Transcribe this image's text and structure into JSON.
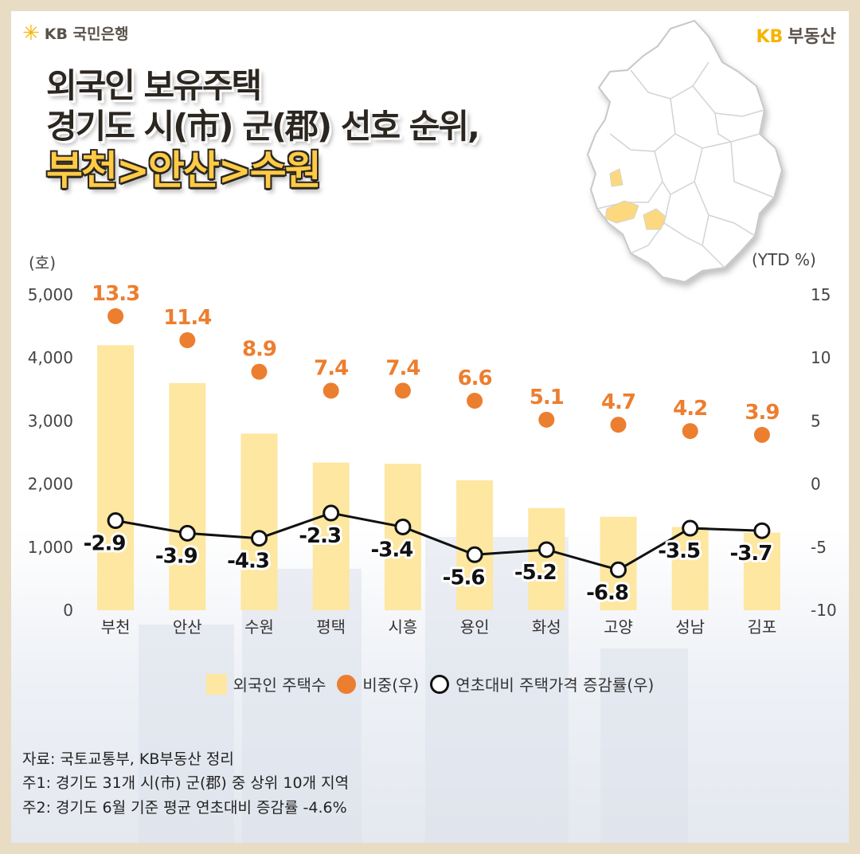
{
  "brand": {
    "left_logo": "KB 국민은행",
    "right_logo_kb": "KB",
    "right_logo_text": "부동산"
  },
  "title": {
    "line1": "외국인 보유주택",
    "line2": "경기도 시(市) 군(郡) 선호 순위,",
    "line3": "부천>안산>수원"
  },
  "units": {
    "left": "(호)",
    "right": "(YTD %)"
  },
  "colors": {
    "bar": "#fde7a1",
    "share_dot": "#ec7e2f",
    "line": "#111111"
  },
  "chart_data": {
    "type": "bar",
    "categories": [
      "부천",
      "안산",
      "수원",
      "평택",
      "시흥",
      "용인",
      "화성",
      "고양",
      "성남",
      "김포"
    ],
    "ylim_left": [
      0,
      5000
    ],
    "ylim_right": [
      -10,
      15
    ],
    "left_ticks": [
      "5,000",
      "4,000",
      "3,000",
      "2,000",
      "1,000",
      "0"
    ],
    "right_ticks": [
      "15",
      "10",
      "5",
      "0",
      "-5",
      "-10"
    ],
    "series": [
      {
        "name": "외국인 주택수",
        "type": "bar",
        "axis": "left",
        "values": [
          4200,
          3600,
          2800,
          2340,
          2320,
          2060,
          1620,
          1480,
          1320,
          1230
        ]
      },
      {
        "name": "비중(우)",
        "type": "scatter",
        "axis": "right",
        "values": [
          13.3,
          11.4,
          8.9,
          7.4,
          7.4,
          6.6,
          5.1,
          4.7,
          4.2,
          3.9
        ],
        "labels": [
          "13.3",
          "11.4",
          "8.9",
          "7.4",
          "7.4",
          "6.6",
          "5.1",
          "4.7",
          "4.2",
          "3.9"
        ]
      },
      {
        "name": "연초대비 주택가격 증감률(우)",
        "type": "line",
        "axis": "right",
        "values": [
          -2.9,
          -3.9,
          -4.3,
          -2.3,
          -3.4,
          -5.6,
          -5.2,
          -6.8,
          -3.5,
          -3.7
        ],
        "labels": [
          "-2.9",
          "-3.9",
          "-4.3",
          "-2.3",
          "-3.4",
          "-5.6",
          "-5.2",
          "-6.8",
          "-3.5",
          "-3.7"
        ]
      }
    ],
    "grid": false,
    "legend": "bottom-center"
  },
  "notes": [
    "자료: 국토교통부, KB부동산 정리",
    "주1: 경기도 31개 시(市) 군(郡) 중 상위 10개 지역",
    "주2: 경기도 6월 기준 평균 연초대비 증감률 -4.6%"
  ]
}
